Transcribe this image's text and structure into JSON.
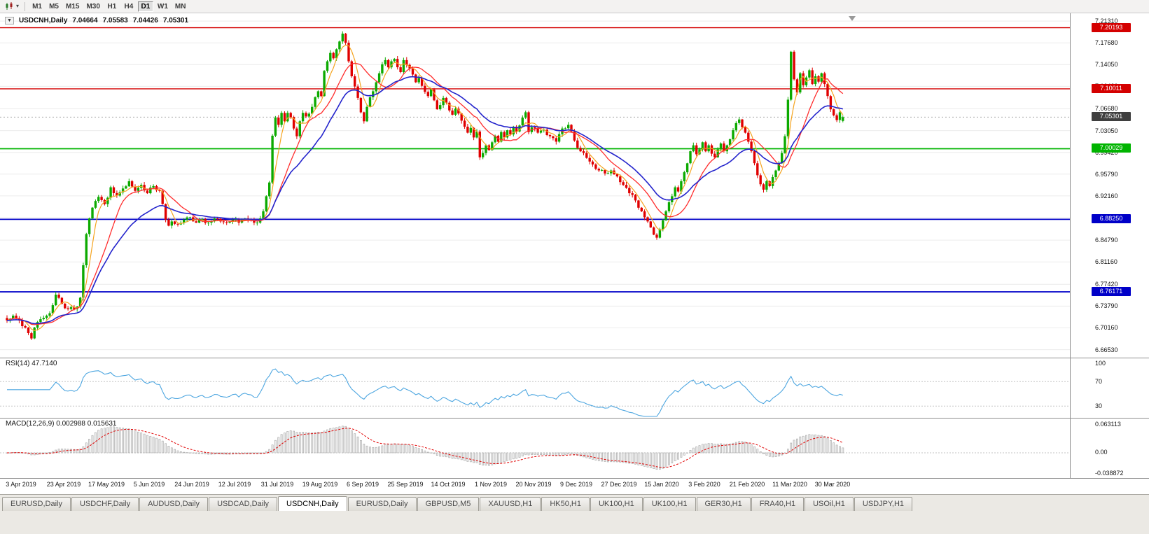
{
  "toolbar": {
    "timeframes": [
      {
        "label": "M1",
        "active": false
      },
      {
        "label": "M5",
        "active": false
      },
      {
        "label": "M15",
        "active": false
      },
      {
        "label": "M30",
        "active": false
      },
      {
        "label": "H1",
        "active": false
      },
      {
        "label": "H4",
        "active": false
      },
      {
        "label": "D1",
        "active": true
      },
      {
        "label": "W1",
        "active": false
      },
      {
        "label": "MN",
        "active": false
      }
    ]
  },
  "chart_header": {
    "collapse_arrow": "▼",
    "symbol": "USDCNH,Daily",
    "open": "7.04664",
    "high": "7.05583",
    "low": "7.04426",
    "close": "7.05301"
  },
  "price_axis": {
    "ticks": [
      {
        "label": "7.21310",
        "value": 7.2131
      },
      {
        "label": "7.17680",
        "value": 7.1768
      },
      {
        "label": "7.14050",
        "value": 7.1405
      },
      {
        "label": "7.10420",
        "value": 7.1042
      },
      {
        "label": "7.06680",
        "value": 7.0668
      },
      {
        "label": "7.03050",
        "value": 7.0305
      },
      {
        "label": "6.99420",
        "value": 6.9942
      },
      {
        "label": "6.95790",
        "value": 6.9579
      },
      {
        "label": "6.92160",
        "value": 6.9216
      },
      {
        "label": "6.88530",
        "value": 6.8853
      },
      {
        "label": "6.84790",
        "value": 6.8479
      },
      {
        "label": "6.81160",
        "value": 6.8116
      },
      {
        "label": "6.77420",
        "value": 6.7742
      },
      {
        "label": "6.73790",
        "value": 6.7379
      },
      {
        "label": "6.70160",
        "value": 6.7016
      },
      {
        "label": "6.66530",
        "value": 6.6653
      }
    ],
    "badges": [
      {
        "label": "7.20193",
        "value": 7.20193,
        "bg": "#d40000",
        "fg": "#ffffff"
      },
      {
        "label": "7.10011",
        "value": 7.10011,
        "bg": "#d40000",
        "fg": "#ffffff"
      },
      {
        "label": "7.05301",
        "value": 7.05301,
        "bg": "#3f3f3f",
        "fg": "#ffffff"
      },
      {
        "label": "7.00029",
        "value": 7.00029,
        "bg": "#00b400",
        "fg": "#ffffff"
      },
      {
        "label": "6.88250",
        "value": 6.8825,
        "bg": "#0000c8",
        "fg": "#ffffff"
      },
      {
        "label": "6.76171",
        "value": 6.76171,
        "bg": "#0000c8",
        "fg": "#ffffff"
      }
    ]
  },
  "rsi_panel": {
    "label": "RSI(14) 47.7140",
    "indicator": "RSI(14)",
    "current_value": "47.7140",
    "line_color": "#4da6e0",
    "axis": [
      {
        "label": "100",
        "value": 100
      },
      {
        "label": "70",
        "value": 70
      },
      {
        "label": "30",
        "value": 30
      }
    ]
  },
  "macd_panel": {
    "label": "MACD(12,26,9) 0.002988 0.015631",
    "indicator": "MACD(12,26,9)",
    "current_macd": "0.002988",
    "current_signal": "0.015631",
    "axis": [
      {
        "label": "0.063113",
        "value": 0.063113
      },
      {
        "label": "0.00",
        "value": 0
      },
      {
        "label": "-0.038872",
        "value": -0.038872
      }
    ]
  },
  "tabs": [
    {
      "label": "EURUSD,Daily",
      "active": false
    },
    {
      "label": "USDCHF,Daily",
      "active": false
    },
    {
      "label": "AUDUSD,Daily",
      "active": false
    },
    {
      "label": "USDCAD,Daily",
      "active": false
    },
    {
      "label": "USDCNH,Daily",
      "active": true
    },
    {
      "label": "EURUSD,Daily",
      "active": false
    },
    {
      "label": "GBPUSD,M5",
      "active": false
    },
    {
      "label": "XAUUSD,H1",
      "active": false
    },
    {
      "label": "HK50,H1",
      "active": false
    },
    {
      "label": "UK100,H1",
      "active": false
    },
    {
      "label": "UK100,H1",
      "active": false
    },
    {
      "label": "GER30,H1",
      "active": false
    },
    {
      "label": "FRA40,H1",
      "active": false
    },
    {
      "label": "USOil,H1",
      "active": false
    },
    {
      "label": "USDJPY,H1",
      "active": false
    }
  ],
  "chart_data": {
    "type": "candlestick",
    "symbol": "USDCNH",
    "timeframe": "Daily",
    "title": "USDCNH,Daily 7.04664 7.05583 7.04426 7.05301",
    "last_ohlc": {
      "open": 7.04664,
      "high": 7.05583,
      "low": 7.04426,
      "close": 7.05301
    },
    "y_range": [
      6.652,
      7.226
    ],
    "x_labels": [
      "3 Apr 2019",
      "23 Apr 2019",
      "17 May 2019",
      "5 Jun 2019",
      "24 Jun 2019",
      "12 Jul 2019",
      "31 Jul 2019",
      "19 Aug 2019",
      "6 Sep 2019",
      "25 Sep 2019",
      "14 Oct 2019",
      "1 Nov 2019",
      "20 Nov 2019",
      "9 Dec 2019",
      "27 Dec 2019",
      "15 Jan 2020",
      "3 Feb 2020",
      "21 Feb 2020",
      "11 Mar 2020",
      "30 Mar 2020"
    ],
    "horizontal_lines": [
      {
        "value": 7.20193,
        "color": "#d40000",
        "width": 1.4
      },
      {
        "value": 7.10011,
        "color": "#d40000",
        "width": 1.4
      },
      {
        "value": 7.00029,
        "color": "#00b400",
        "width": 1.8
      },
      {
        "value": 6.8825,
        "color": "#0000c8",
        "width": 1.8
      },
      {
        "value": 6.76171,
        "color": "#0000c8",
        "width": 1.8
      }
    ],
    "bid_line": {
      "value": 7.05301,
      "color": "#9a9a9a"
    },
    "candle_colors": {
      "up": "#0caa00",
      "down": "#e00000"
    },
    "moving_averages": [
      {
        "type": "sma",
        "period": 5,
        "color": "#f5a41f"
      },
      {
        "type": "sma",
        "period": 13,
        "color": "#ff2d2d"
      },
      {
        "type": "ema",
        "period": 24,
        "color": "#2424cc"
      }
    ],
    "rsi": {
      "period": 14,
      "current": 47.714,
      "levels": [
        70,
        30
      ],
      "scale_top": 100,
      "scale_bottom": 0
    },
    "macd": {
      "fast": 12,
      "slow": 26,
      "signal": 9,
      "current_macd": 0.002988,
      "current_signal": 0.015631,
      "scale_max": 0.063113,
      "scale_min": -0.038872
    },
    "close_waypoints": [
      [
        0,
        6.714
      ],
      [
        2,
        6.722
      ],
      [
        4,
        6.714
      ],
      [
        6,
        6.702
      ],
      [
        8,
        6.684
      ],
      [
        9,
        6.702
      ],
      [
        11,
        6.716
      ],
      [
        13,
        6.722
      ],
      [
        14,
        6.726
      ],
      [
        16,
        6.757
      ],
      [
        18,
        6.742
      ],
      [
        20,
        6.733
      ],
      [
        23,
        6.737
      ],
      [
        24,
        6.752
      ],
      [
        25,
        6.806
      ],
      [
        26,
        6.858
      ],
      [
        27,
        6.884
      ],
      [
        28,
        6.902
      ],
      [
        30,
        6.92
      ],
      [
        32,
        6.908
      ],
      [
        34,
        6.936
      ],
      [
        36,
        6.922
      ],
      [
        38,
        6.934
      ],
      [
        40,
        6.946
      ],
      [
        42,
        6.93
      ],
      [
        44,
        6.94
      ],
      [
        46,
        6.926
      ],
      [
        48,
        6.938
      ],
      [
        50,
        6.93
      ],
      [
        51,
        6.908
      ],
      [
        52,
        6.882
      ],
      [
        53,
        6.872
      ],
      [
        54,
        6.879
      ],
      [
        56,
        6.874
      ],
      [
        58,
        6.882
      ],
      [
        60,
        6.886
      ],
      [
        62,
        6.877
      ],
      [
        64,
        6.883
      ],
      [
        66,
        6.877
      ],
      [
        68,
        6.884
      ],
      [
        70,
        6.879
      ],
      [
        72,
        6.877
      ],
      [
        74,
        6.882
      ],
      [
        76,
        6.877
      ],
      [
        78,
        6.884
      ],
      [
        80,
        6.881
      ],
      [
        82,
        6.877
      ],
      [
        83,
        6.884
      ],
      [
        84,
        6.896
      ],
      [
        85,
        6.921
      ],
      [
        86,
        6.944
      ],
      [
        87,
        7.022
      ],
      [
        88,
        7.052
      ],
      [
        89,
        7.04
      ],
      [
        90,
        7.06
      ],
      [
        91,
        7.046
      ],
      [
        92,
        7.06
      ],
      [
        93,
        7.053
      ],
      [
        94,
        7.034
      ],
      [
        95,
        7.021
      ],
      [
        96,
        7.046
      ],
      [
        97,
        7.06
      ],
      [
        98,
        7.054
      ],
      [
        100,
        7.07
      ],
      [
        101,
        7.086
      ],
      [
        102,
        7.096
      ],
      [
        103,
        7.088
      ],
      [
        104,
        7.13
      ],
      [
        105,
        7.146
      ],
      [
        106,
        7.16
      ],
      [
        107,
        7.151
      ],
      [
        108,
        7.166
      ],
      [
        109,
        7.179
      ],
      [
        110,
        7.192
      ],
      [
        111,
        7.177
      ],
      [
        112,
        7.146
      ],
      [
        113,
        7.121
      ],
      [
        114,
        7.104
      ],
      [
        115,
        7.085
      ],
      [
        116,
        7.061
      ],
      [
        117,
        7.046
      ],
      [
        118,
        7.07
      ],
      [
        119,
        7.086
      ],
      [
        120,
        7.096
      ],
      [
        121,
        7.111
      ],
      [
        122,
        7.126
      ],
      [
        123,
        7.141
      ],
      [
        124,
        7.148
      ],
      [
        125,
        7.136
      ],
      [
        126,
        7.146
      ],
      [
        127,
        7.15
      ],
      [
        128,
        7.136
      ],
      [
        129,
        7.128
      ],
      [
        130,
        7.148
      ],
      [
        131,
        7.14
      ],
      [
        132,
        7.134
      ],
      [
        133,
        7.124
      ],
      [
        134,
        7.111
      ],
      [
        135,
        7.118
      ],
      [
        136,
        7.105
      ],
      [
        137,
        7.095
      ],
      [
        138,
        7.088
      ],
      [
        139,
        7.099
      ],
      [
        140,
        7.081
      ],
      [
        141,
        7.066
      ],
      [
        142,
        7.073
      ],
      [
        143,
        7.085
      ],
      [
        144,
        7.077
      ],
      [
        145,
        7.064
      ],
      [
        146,
        7.057
      ],
      [
        147,
        7.067
      ],
      [
        148,
        7.059
      ],
      [
        149,
        7.047
      ],
      [
        150,
        7.037
      ],
      [
        151,
        7.027
      ],
      [
        152,
        7.035
      ],
      [
        153,
        7.019
      ],
      [
        154,
        7.029
      ],
      [
        155,
        6.986
      ],
      [
        156,
        6.993
      ],
      [
        157,
        7.006
      ],
      [
        158,
        6.998
      ],
      [
        159,
        7.011
      ],
      [
        160,
        7.022
      ],
      [
        161,
        7.012
      ],
      [
        162,
        7.028
      ],
      [
        163,
        7.019
      ],
      [
        164,
        7.031
      ],
      [
        165,
        7.024
      ],
      [
        166,
        7.037
      ],
      [
        167,
        7.029
      ],
      [
        168,
        7.039
      ],
      [
        169,
        7.052
      ],
      [
        170,
        7.061
      ],
      [
        171,
        7.028
      ],
      [
        172,
        7.036
      ],
      [
        174,
        7.027
      ],
      [
        176,
        7.032
      ],
      [
        178,
        7.021
      ],
      [
        180,
        7.012
      ],
      [
        182,
        7.034
      ],
      [
        184,
        7.04
      ],
      [
        185,
        7.029
      ],
      [
        186,
        7.014
      ],
      [
        188,
        6.996
      ],
      [
        190,
        6.985
      ],
      [
        192,
        6.974
      ],
      [
        194,
        6.964
      ],
      [
        196,
        6.959
      ],
      [
        198,
        6.964
      ],
      [
        200,
        6.954
      ],
      [
        202,
        6.94
      ],
      [
        204,
        6.926
      ],
      [
        206,
        6.914
      ],
      [
        208,
        6.896
      ],
      [
        210,
        6.879
      ],
      [
        211,
        6.869
      ],
      [
        212,
        6.857
      ],
      [
        213,
        6.852
      ],
      [
        214,
        6.866
      ],
      [
        215,
        6.881
      ],
      [
        216,
        6.896
      ],
      [
        217,
        6.911
      ],
      [
        218,
        6.921
      ],
      [
        219,
        6.936
      ],
      [
        220,
        6.929
      ],
      [
        221,
        6.946
      ],
      [
        222,
        6.961
      ],
      [
        223,
        6.976
      ],
      [
        224,
        6.996
      ],
      [
        225,
        7.006
      ],
      [
        226,
        6.991
      ],
      [
        227,
        6.999
      ],
      [
        228,
        7.011
      ],
      [
        229,
        6.996
      ],
      [
        230,
        7.006
      ],
      [
        231,
        6.992
      ],
      [
        232,
        6.986
      ],
      [
        233,
        6.999
      ],
      [
        234,
        7.009
      ],
      [
        235,
        6.996
      ],
      [
        236,
        7.006
      ],
      [
        237,
        7.016
      ],
      [
        238,
        7.031
      ],
      [
        239,
        7.043
      ],
      [
        240,
        7.049
      ],
      [
        241,
        7.036
      ],
      [
        242,
        7.027
      ],
      [
        243,
        7.012
      ],
      [
        244,
        6.996
      ],
      [
        245,
        6.976
      ],
      [
        246,
        6.956
      ],
      [
        247,
        6.941
      ],
      [
        248,
        6.932
      ],
      [
        249,
        6.946
      ],
      [
        250,
        6.938
      ],
      [
        251,
        6.953
      ],
      [
        252,
        6.964
      ],
      [
        253,
        6.976
      ],
      [
        254,
        6.993
      ],
      [
        255,
        7.021
      ],
      [
        256,
        7.082
      ],
      [
        257,
        7.162
      ],
      [
        258,
        7.116
      ],
      [
        259,
        7.094
      ],
      [
        260,
        7.126
      ],
      [
        261,
        7.106
      ],
      [
        262,
        7.119
      ],
      [
        263,
        7.131
      ],
      [
        264,
        7.108
      ],
      [
        265,
        7.121
      ],
      [
        266,
        7.112
      ],
      [
        267,
        7.126
      ],
      [
        268,
        7.108
      ],
      [
        269,
        7.088
      ],
      [
        270,
        7.066
      ],
      [
        271,
        7.056
      ],
      [
        272,
        7.048
      ],
      [
        273,
        7.061
      ],
      [
        274,
        7.053
      ]
    ]
  }
}
